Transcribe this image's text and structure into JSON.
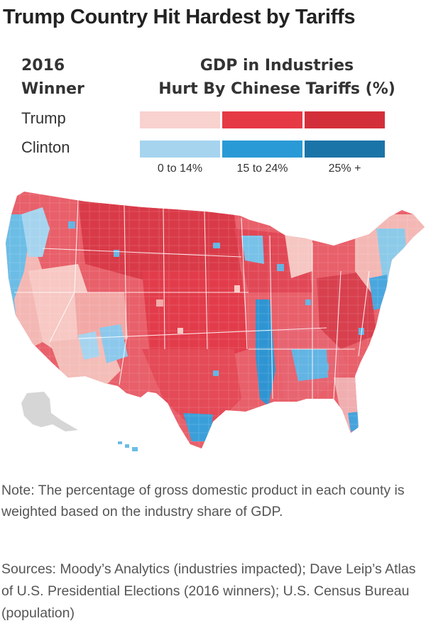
{
  "title": "Trump Country Hit Hardest by Tariffs",
  "legend": {
    "winner_heading_line1": "2016",
    "winner_heading_line2": "Winner",
    "gdp_heading_line1": "GDP in Industries",
    "gdp_heading_line2": "Hurt By Chinese Tariffs (%)",
    "rows": [
      {
        "label": "Trump",
        "colors": [
          "#f8d2cf",
          "#e63946",
          "#d32f3a"
        ]
      },
      {
        "label": "Clinton",
        "colors": [
          "#a6d4ef",
          "#2a9ad6",
          "#1b74a8"
        ]
      }
    ],
    "bins": [
      "0 to 14%",
      "15 to 24%",
      "25% +"
    ]
  },
  "map_data": {
    "region": "Contiguous United States, county level",
    "encoding": "Color hue = 2016 winner (red Trump, blue Clinton); shade = share of county GDP in industries hurt by Chinese tariffs"
  },
  "note": "Note: The percentage of gross domestic product in each county is weighted based on the industry share of GDP.",
  "sources": "Sources: Moody’s Analytics (industries impacted); Dave Leip’s Atlas of U.S. Presidential Elections (2016 winners); U.S. Census Bureau (population)"
}
